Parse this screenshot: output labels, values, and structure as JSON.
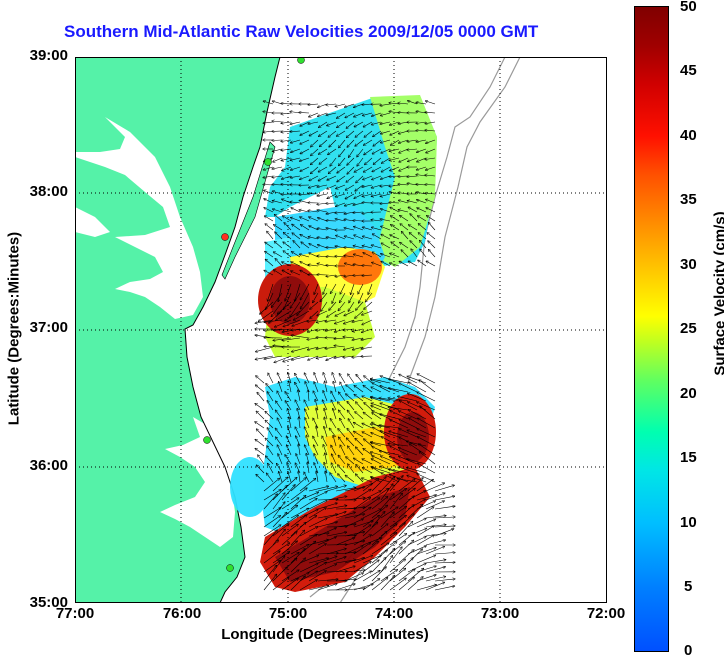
{
  "title": "Southern Mid-Atlantic Raw Velocities 2009/12/05 0000 GMT",
  "axes": {
    "xlabel": "Longitude (Degrees:Minutes)",
    "ylabel": "Latitude (Degrees:Minutes)",
    "xticks": [
      "77:00",
      "76:00",
      "75:00",
      "74:00",
      "73:00",
      "72:00"
    ],
    "yticks": [
      "39:00",
      "38:00",
      "37:00",
      "36:00",
      "35:00"
    ],
    "xlim": [
      -77,
      -72
    ],
    "ylim": [
      35,
      39
    ],
    "grid": "dotted"
  },
  "colorbar": {
    "label": "Surface Velocity (cm/s)",
    "ticks": [
      "50",
      "45",
      "40",
      "35",
      "30",
      "25",
      "20",
      "15",
      "10",
      "5",
      "0"
    ],
    "range": [
      0,
      50
    ]
  },
  "colors": {
    "land": "#55f2a8",
    "title": "#1a1aff",
    "contour": "#9a9a9a"
  }
}
